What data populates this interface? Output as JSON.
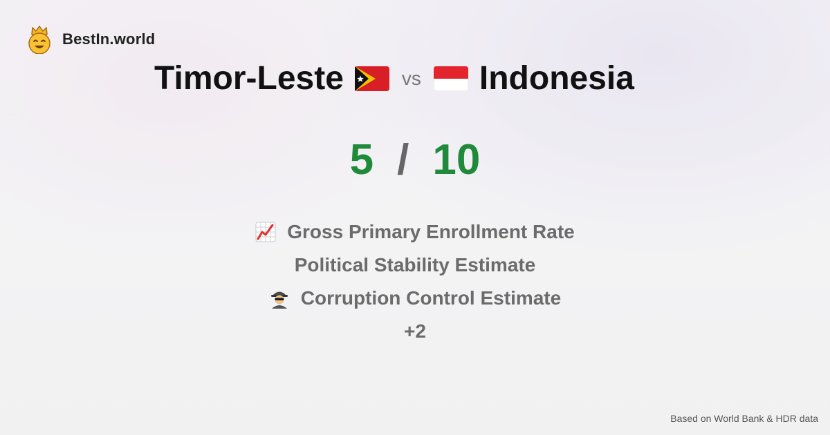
{
  "brand": {
    "name": "BestIn.world",
    "logo_icon": "crown-smiley-icon"
  },
  "comparison": {
    "left": {
      "name": "Timor-Leste",
      "flag_icon": "timor-leste-flag-icon"
    },
    "separator": "vs",
    "right": {
      "name": "Indonesia",
      "flag_icon": "indonesia-flag-icon"
    }
  },
  "score": {
    "left": "5",
    "separator": "/",
    "right": "10"
  },
  "metrics": [
    {
      "label": "Gross Primary Enrollment Rate",
      "icon": "chart-increasing-icon"
    },
    {
      "label": "Political Stability Estimate",
      "icon": ""
    },
    {
      "label": "Corruption Control Estimate",
      "icon": "detective-icon"
    },
    {
      "label": "+2",
      "icon": ""
    }
  ],
  "footer": {
    "source": "Based on World Bank & HDR data"
  },
  "colors": {
    "score": "#1f8a3a",
    "metric_text": "#6b6b6b"
  }
}
